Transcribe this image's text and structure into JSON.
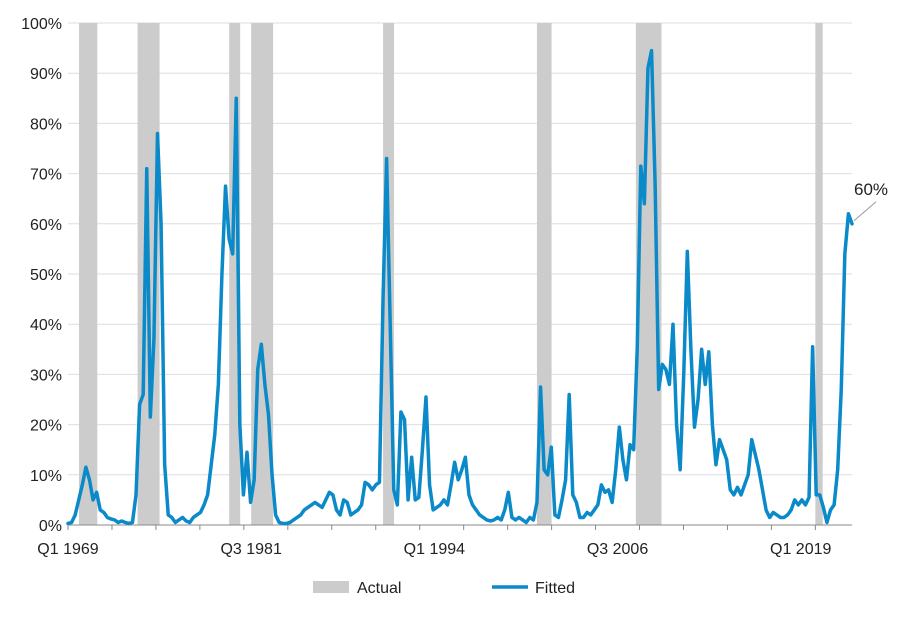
{
  "chart_data": {
    "type": "line",
    "x_labels": [
      "Q1 1969",
      "Q3 1981",
      "Q1 1994",
      "Q3 2006",
      "Q1 2019"
    ],
    "y_ticks": [
      "0%",
      "10%",
      "20%",
      "30%",
      "40%",
      "50%",
      "60%",
      "70%",
      "80%",
      "90%",
      "100%"
    ],
    "ylim": [
      0,
      100
    ],
    "legend": [
      {
        "name": "Actual",
        "color": "#cccccc",
        "kind": "bar"
      },
      {
        "name": "Fitted",
        "color": "#0a8ac8",
        "kind": "line"
      }
    ],
    "annotation": {
      "text": "60%",
      "value": 60
    },
    "colors": {
      "fitted": "#0a8ac8",
      "actual": "#cccccc",
      "grid": "#dedede",
      "axis": "#888888"
    },
    "actual_recession_periods": [
      [
        "Q4 1969",
        "Q4 1970"
      ],
      [
        "Q4 1973",
        "Q1 1975"
      ],
      [
        "Q1 1980",
        "Q3 1980"
      ],
      [
        "Q3 1981",
        "Q4 1982"
      ],
      [
        "Q3 1990",
        "Q1 1991"
      ],
      [
        "Q1 2001",
        "Q4 2001"
      ],
      [
        "Q4 2007",
        "Q2 2009"
      ],
      [
        "Q1 2020",
        "Q2 2020"
      ]
    ],
    "series": [
      {
        "name": "Fitted",
        "start": "Q1 1969",
        "end": "Q3 2022",
        "values": [
          0.3,
          0.5,
          2,
          5,
          8,
          11.5,
          9,
          5,
          6.5,
          3,
          2.5,
          1.5,
          1.2,
          1,
          0.5,
          0.8,
          0.5,
          0.3,
          0.5,
          6,
          24,
          26,
          71,
          21.5,
          37,
          78,
          60,
          12,
          2,
          1.5,
          0.5,
          1,
          1.5,
          0.8,
          0.5,
          1.5,
          2,
          2.5,
          4,
          6,
          12,
          18,
          28,
          50,
          67.5,
          57,
          54,
          85,
          20,
          6,
          14.5,
          4.5,
          9,
          31,
          36,
          28,
          22,
          10,
          2,
          0.5,
          0.3,
          0.3,
          0.5,
          1,
          1.5,
          2,
          3,
          3.5,
          4,
          4.5,
          4,
          3.5,
          5,
          6.5,
          6,
          3,
          2,
          5,
          4.5,
          2,
          2.5,
          3,
          4,
          8.5,
          8,
          7,
          8,
          8.5,
          45,
          73,
          40,
          7,
          4,
          22.5,
          21,
          5,
          13.5,
          5,
          5.5,
          15,
          25.5,
          8,
          3,
          3.5,
          4,
          5,
          4,
          8,
          12.5,
          9,
          11,
          13.5,
          6,
          4,
          3,
          2,
          1.5,
          1,
          0.8,
          1,
          1.5,
          1,
          3,
          6.5,
          1.5,
          1,
          1.5,
          1,
          0.5,
          1.5,
          1,
          4.5,
          27.5,
          11,
          10,
          15.5,
          2,
          1.5,
          5,
          9,
          26,
          6,
          4.5,
          1.5,
          1.5,
          2.5,
          2,
          3,
          4,
          8,
          6.5,
          7,
          4.5,
          11,
          19.5,
          13,
          9,
          16,
          15,
          35,
          71.5,
          64,
          91,
          94.5,
          68,
          27,
          32,
          31,
          28,
          40,
          20,
          11,
          30,
          54.5,
          35,
          19.5,
          25,
          35,
          28,
          34.5,
          20,
          12,
          17,
          15,
          13,
          7,
          6,
          7.5,
          6,
          8,
          10,
          17,
          14,
          11,
          7,
          3,
          1.5,
          2.5,
          2,
          1.5,
          1.5,
          2,
          3,
          5,
          4,
          5,
          4,
          5.5,
          35.5,
          6,
          6,
          3.5,
          0.5,
          3,
          4,
          11,
          27,
          54,
          62,
          60
        ]
      }
    ],
    "gridlines": true
  }
}
